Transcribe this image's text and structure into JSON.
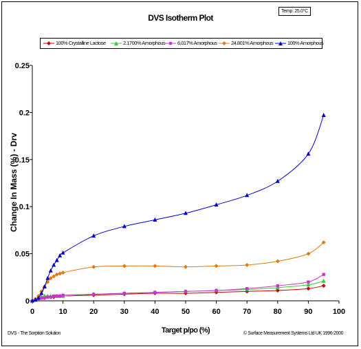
{
  "temp_label": "Temp: 25.0°C",
  "footer": {
    "left": "DVS - The Sorption Solution",
    "right": "© Surface Measurement Systems Ltd UK 1996-2000"
  },
  "chart_data": {
    "type": "line",
    "title": "DVS Isotherm Plot",
    "xlabel": "Target p/po (%)",
    "ylabel": "Change In Mass (%) - Drv",
    "xlim": [
      0,
      100
    ],
    "ylim": [
      0,
      0.25
    ],
    "x_ticks": [
      "0",
      "10",
      "20",
      "30",
      "40",
      "50",
      "60",
      "70",
      "80",
      "90",
      "100"
    ],
    "y_ticks": [
      "0",
      "0.05",
      "0.1",
      "0.15",
      "0.2",
      "0.25"
    ],
    "grid": false,
    "legend_position": "top",
    "series": [
      {
        "name": "100% Crystalline Lactose",
        "color": "#cc0000",
        "marker": "diamond",
        "x": [
          0,
          1,
          2,
          3,
          4,
          5,
          6,
          7,
          8,
          9,
          10,
          20,
          30,
          40,
          50,
          60,
          70,
          80,
          90,
          95
        ],
        "y": [
          0,
          0.001,
          0.002,
          0.003,
          0.003,
          0.004,
          0.004,
          0.004,
          0.005,
          0.005,
          0.005,
          0.006,
          0.007,
          0.008,
          0.008,
          0.009,
          0.01,
          0.011,
          0.013,
          0.016
        ]
      },
      {
        "name": "2.1700% Amorphous",
        "color": "#33cc33",
        "marker": "triangle",
        "x": [
          0,
          1,
          2,
          3,
          4,
          5,
          6,
          7,
          8,
          9,
          10,
          20,
          30,
          40,
          50,
          60,
          70,
          80,
          90,
          95
        ],
        "y": [
          0,
          0.001,
          0.002,
          0.004,
          0.005,
          0.005,
          0.005,
          0.005,
          0.005,
          0.005,
          0.005,
          0.007,
          0.008,
          0.009,
          0.01,
          0.011,
          0.012,
          0.014,
          0.017,
          0.021
        ]
      },
      {
        "name": "6.017% Amorphous",
        "color": "#cc33cc",
        "marker": "square",
        "x": [
          0,
          1,
          2,
          3,
          4,
          5,
          6,
          7,
          8,
          9,
          10,
          20,
          30,
          40,
          50,
          60,
          70,
          80,
          90,
          95
        ],
        "y": [
          0,
          0.001,
          0.002,
          0.003,
          0.003,
          0.004,
          0.004,
          0.005,
          0.005,
          0.005,
          0.006,
          0.007,
          0.008,
          0.009,
          0.01,
          0.011,
          0.013,
          0.016,
          0.02,
          0.028
        ]
      },
      {
        "name": "24.801% Amorphous",
        "color": "#e07a10",
        "marker": "diamond",
        "x": [
          0,
          1,
          2,
          3,
          4,
          5,
          6,
          7,
          8,
          9,
          10,
          20,
          30,
          40,
          50,
          60,
          70,
          80,
          90,
          95
        ],
        "y": [
          0,
          0.002,
          0.005,
          0.01,
          0.015,
          0.02,
          0.024,
          0.026,
          0.028,
          0.029,
          0.03,
          0.036,
          0.037,
          0.037,
          0.036,
          0.037,
          0.038,
          0.042,
          0.05,
          0.062
        ]
      },
      {
        "name": "100% Amorphous",
        "color": "#0000cc",
        "marker": "triangle",
        "x": [
          0,
          1,
          2,
          3,
          4,
          5,
          6,
          7,
          8,
          9,
          10,
          20,
          30,
          40,
          50,
          60,
          70,
          80,
          90,
          95
        ],
        "y": [
          0,
          0.001,
          0.003,
          0.008,
          0.015,
          0.024,
          0.032,
          0.038,
          0.043,
          0.048,
          0.051,
          0.069,
          0.079,
          0.086,
          0.093,
          0.102,
          0.112,
          0.127,
          0.156,
          0.197
        ]
      }
    ]
  }
}
